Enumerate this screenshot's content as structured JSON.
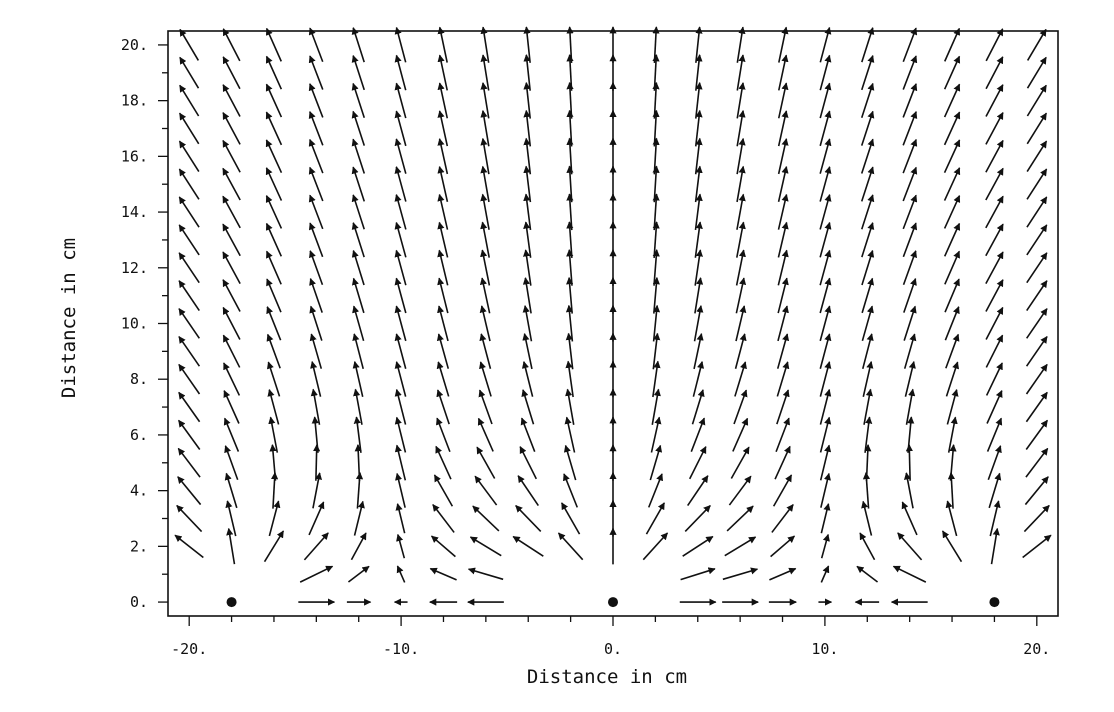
{
  "chart_data": {
    "type": "vector-field",
    "xlabel": "Distance in cm",
    "ylabel": "Distance in cm",
    "xlim": [
      -21,
      21
    ],
    "ylim": [
      -0.5,
      20.5
    ],
    "x_ticks": [
      {
        "value": -20,
        "label": "-20."
      },
      {
        "value": -10,
        "label": "-10."
      },
      {
        "value": 0,
        "label": "0."
      },
      {
        "value": 10,
        "label": "10."
      },
      {
        "value": 20,
        "label": "20."
      }
    ],
    "y_ticks": [
      {
        "value": 0,
        "label": "0."
      },
      {
        "value": 2,
        "label": "2."
      },
      {
        "value": 4,
        "label": "4."
      },
      {
        "value": 6,
        "label": "6."
      },
      {
        "value": 8,
        "label": "8."
      },
      {
        "value": 10,
        "label": "10."
      },
      {
        "value": 12,
        "label": "12."
      },
      {
        "value": 14,
        "label": "14."
      },
      {
        "value": 16,
        "label": "16."
      },
      {
        "value": 18,
        "label": "18."
      },
      {
        "value": 20,
        "label": "20."
      }
    ],
    "grid": false,
    "sources": [
      {
        "x": -18,
        "y": 0
      },
      {
        "x": 0,
        "y": 0
      },
      {
        "x": 18,
        "y": 0
      }
    ],
    "field": {
      "x_start": -20,
      "x_step": 2,
      "x_count": 21,
      "y_start": 0,
      "y_step": 1,
      "y_count": 21,
      "omitted_cells": [
        {
          "y": 0,
          "x_min": -20,
          "x_max": -16
        },
        {
          "y": 0,
          "x_min": -4,
          "x_max": 2
        },
        {
          "y": 0,
          "x_min": 16,
          "x_max": 20
        },
        {
          "y": 1,
          "x_min": -20,
          "x_max": -16
        },
        {
          "y": 1,
          "x_min": -4,
          "x_max": 2
        },
        {
          "y": 1,
          "x_min": 16,
          "x_max": 20
        }
      ]
    }
  }
}
